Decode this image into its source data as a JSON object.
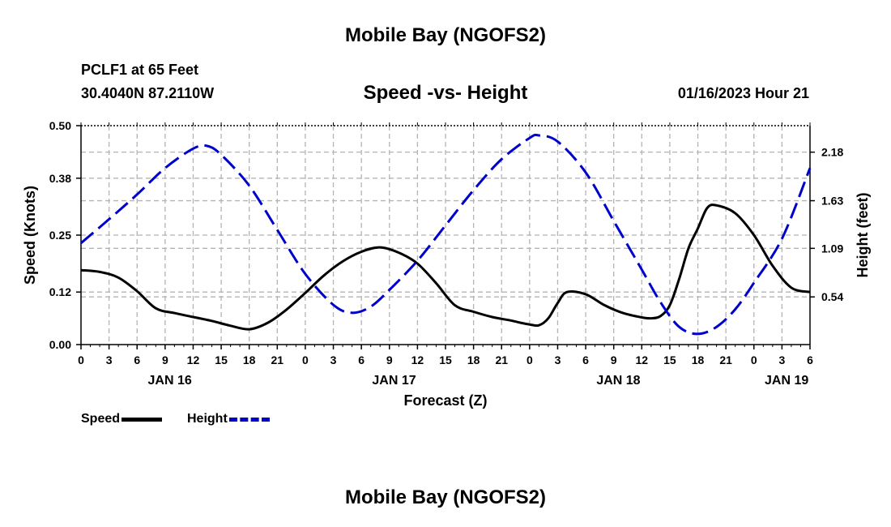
{
  "header": {
    "title": "Mobile Bay (NGOFS2)",
    "station": "PCLF1 at 65 Feet",
    "coords": "30.4040N  87.2110W",
    "subtitle": "Speed -vs- Height",
    "timestamp": "01/16/2023 Hour 21"
  },
  "footer": {
    "title": "Mobile Bay (NGOFS2)"
  },
  "legend": {
    "speed_label": "Speed",
    "height_label": "Height"
  },
  "colors": {
    "speed": "#000000",
    "height": "#0000cc",
    "grid": "#b4b4b4"
  },
  "chart_data": {
    "type": "line",
    "title": "Speed -vs- Height",
    "xlabel": "Forecast (Z)",
    "ylabel": "Speed (Knots)",
    "y2label": "Height (feet)",
    "xlim": [
      0,
      78
    ],
    "ylim": [
      0,
      0.5
    ],
    "y2lim": [
      0,
      2.48
    ],
    "x_ticks": [
      0,
      3,
      6,
      9,
      12,
      15,
      18,
      21,
      24,
      27,
      30,
      33,
      36,
      39,
      42,
      45,
      48,
      51,
      54,
      57,
      60,
      63,
      66,
      69,
      72,
      75,
      78
    ],
    "x_tick_labels": [
      "0",
      "3",
      "6",
      "9",
      "12",
      "15",
      "18",
      "21",
      "0",
      "3",
      "6",
      "9",
      "12",
      "15",
      "18",
      "21",
      "0",
      "3",
      "6",
      "9",
      "12",
      "15",
      "18",
      "21",
      "0",
      "3",
      "6"
    ],
    "date_labels": [
      {
        "x": 9.5,
        "label": "JAN 16"
      },
      {
        "x": 33.5,
        "label": "JAN 17"
      },
      {
        "x": 57.5,
        "label": "JAN 18"
      },
      {
        "x": 75.5,
        "label": "JAN 19"
      }
    ],
    "y_ticks": [
      0.0,
      0.12,
      0.25,
      0.38,
      0.5
    ],
    "y_tick_labels": [
      "0.00",
      "0.12",
      "0.25",
      "0.38",
      "0.50"
    ],
    "y2_ticks": [
      0.54,
      1.09,
      1.63,
      2.18
    ],
    "y2_tick_labels": [
      "0.54",
      "1.09",
      "1.63",
      "2.18"
    ],
    "series": [
      {
        "name": "Speed",
        "axis": "left",
        "style": "solid",
        "x": [
          0,
          2,
          4,
          6,
          8,
          10,
          12,
          14,
          16,
          18,
          20,
          22,
          24,
          26,
          28,
          30,
          32,
          34,
          36,
          38,
          40,
          42,
          44,
          46,
          47,
          48,
          49,
          50,
          51,
          52,
          54,
          56,
          58,
          60,
          61,
          62,
          63,
          64,
          65,
          66,
          67,
          68,
          70,
          72,
          74,
          76,
          78
        ],
        "values": [
          0.17,
          0.166,
          0.153,
          0.122,
          0.083,
          0.072,
          0.063,
          0.054,
          0.043,
          0.035,
          0.05,
          0.08,
          0.118,
          0.158,
          0.19,
          0.212,
          0.222,
          0.21,
          0.185,
          0.14,
          0.09,
          0.075,
          0.063,
          0.055,
          0.05,
          0.046,
          0.044,
          0.06,
          0.095,
          0.12,
          0.115,
          0.09,
          0.072,
          0.062,
          0.06,
          0.065,
          0.09,
          0.15,
          0.22,
          0.265,
          0.312,
          0.318,
          0.3,
          0.25,
          0.18,
          0.13,
          0.12
        ]
      },
      {
        "name": "Height",
        "axis": "right",
        "style": "dashed",
        "x": [
          0,
          3,
          6,
          9,
          12,
          13.5,
          15,
          18,
          21,
          24,
          27,
          29,
          31,
          33,
          36,
          39,
          42,
          45,
          48,
          49,
          51,
          54,
          57,
          60,
          62,
          64,
          66,
          68,
          70,
          72,
          75,
          78
        ],
        "values": [
          1.15,
          1.42,
          1.7,
          2.0,
          2.22,
          2.25,
          2.15,
          1.8,
          1.3,
          0.8,
          0.45,
          0.36,
          0.43,
          0.62,
          0.95,
          1.35,
          1.75,
          2.1,
          2.34,
          2.37,
          2.3,
          1.95,
          1.4,
          0.85,
          0.48,
          0.2,
          0.12,
          0.2,
          0.4,
          0.7,
          1.2,
          2.0
        ]
      }
    ]
  }
}
